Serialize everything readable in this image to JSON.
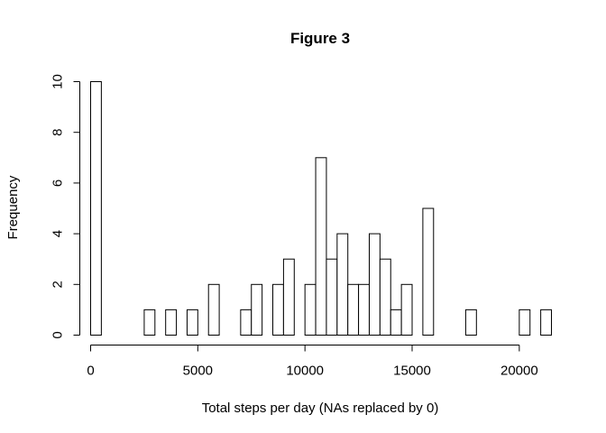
{
  "chart_data": {
    "type": "bar",
    "title": "Figure 3",
    "xlabel": "Total steps per day (NAs replaced by 0)",
    "ylabel": "Frequency",
    "bin_width": 500,
    "x_start": 0,
    "values": [
      10,
      0,
      0,
      0,
      0,
      1,
      0,
      1,
      0,
      1,
      0,
      2,
      0,
      0,
      1,
      2,
      0,
      2,
      3,
      0,
      2,
      7,
      3,
      4,
      2,
      2,
      4,
      3,
      1,
      2,
      0,
      5,
      0,
      0,
      0,
      1,
      0,
      0,
      0,
      0,
      1,
      0,
      1
    ],
    "xlim": [
      0,
      21500
    ],
    "ylim": [
      0,
      10
    ],
    "x_ticks": [
      0,
      5000,
      10000,
      15000,
      20000
    ],
    "y_ticks": [
      0,
      2,
      4,
      6,
      8,
      10
    ],
    "grid": false,
    "colors": {
      "bar_fill": "#ffffff",
      "bar_stroke": "#000000"
    }
  }
}
